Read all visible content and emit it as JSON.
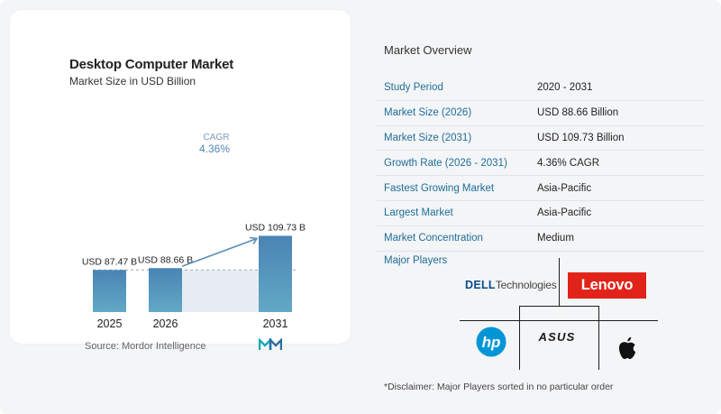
{
  "chart_card": {
    "title": "Desktop Computer Market",
    "subtitle": "Market Size in USD Billion",
    "source": "Source: Mordor Intelligence"
  },
  "colors": {
    "bar_fill_top": "#4a84b3",
    "bar_fill_bottom": "#62a9c6",
    "bar_shadow_area": "#e7edf3",
    "dashed_line": "#9aa9b9",
    "cagr_arrow": "#5d8fb6",
    "cagr_label": "#7a9bb8",
    "cagr_value": "#4f87b3",
    "table_label": "#1f6d98",
    "lenovo_red": "#e2231a",
    "hp_blue": "#0096d6",
    "dell_blue": "#0a4b8a",
    "brand_logo": "#1aa6b7"
  },
  "chart_data": {
    "type": "bar",
    "title": "Desktop Computer Market",
    "subtitle": "Market Size in USD Billion",
    "categories": [
      "2025",
      "2026",
      "2031"
    ],
    "values": [
      87.47,
      88.66,
      109.73
    ],
    "data_labels": [
      "USD 87.47 B",
      "USD 88.66 B",
      "USD 109.73 B"
    ],
    "cagr": {
      "label": "CAGR",
      "value": "4.36%",
      "from": "2026",
      "to": "2031"
    },
    "ylim": [
      0,
      110
    ],
    "grid": false,
    "legend": "none"
  },
  "overview": {
    "title": "Market Overview",
    "rows": [
      {
        "label": "Study Period",
        "value": "2020 - 2031"
      },
      {
        "label": "Market Size (2026)",
        "value": "USD 88.66 Billion"
      },
      {
        "label": "Market Size (2031)",
        "value": "USD 109.73 Billion"
      },
      {
        "label": "Growth Rate (2026 - 2031)",
        "value": "4.36% CAGR"
      },
      {
        "label": "Fastest Growing Market",
        "value": "Asia-Pacific"
      },
      {
        "label": "Largest Market",
        "value": "Asia-Pacific"
      },
      {
        "label": "Market Concentration",
        "value": "Medium"
      }
    ]
  },
  "players": {
    "title": "Major Players",
    "dell_word": "DELL",
    "dell_suffix": "Technologies",
    "lenovo": "Lenovo",
    "hp": "hp",
    "asus": "ASUS",
    "apple_icon": "apple-logo-icon"
  },
  "disclaimer": "*Disclaimer: Major Players sorted in no particular order"
}
